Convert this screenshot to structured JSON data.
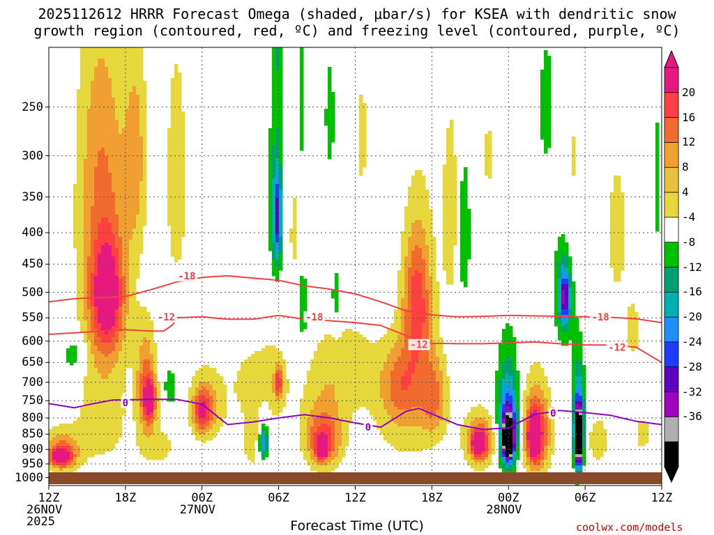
{
  "chart_data": {
    "type": "heatmap",
    "title_line1": "2025112612 HRRR Forecast Omega (shaded, μbar/s) for KSEA with dendritic snow",
    "title_line2": "growth region (contoured, red, ºC) and freezing level (contoured, purple, ºC)",
    "xlabel": "Forecast Time (UTC)",
    "ylabel": "",
    "credit": "coolwx.com/models",
    "x_ticks": [
      "12Z",
      "18Z",
      "00Z",
      "06Z",
      "12Z",
      "18Z",
      "00Z",
      "06Z",
      "12Z"
    ],
    "x_hours": [
      0,
      6,
      12,
      18,
      24,
      30,
      36,
      42,
      48
    ],
    "x_range_hours": [
      0,
      48
    ],
    "date_labels": [
      {
        "hour": 0,
        "lines": [
          "26NOV",
          "2025"
        ]
      },
      {
        "hour": 12,
        "lines": [
          "27NOV"
        ]
      },
      {
        "hour": 36,
        "lines": [
          "28NOV"
        ]
      }
    ],
    "y_ticks": [
      "250",
      "300",
      "350",
      "400",
      "450",
      "500",
      "550",
      "600",
      "650",
      "700",
      "750",
      "800",
      "850",
      "900",
      "950",
      "1000"
    ],
    "y_values_hpa": [
      250,
      300,
      350,
      400,
      450,
      500,
      550,
      600,
      650,
      700,
      750,
      800,
      850,
      900,
      950,
      1000
    ],
    "y_range_hpa": [
      200,
      1030
    ],
    "colorbar": {
      "labels": [
        "20",
        "16",
        "12",
        "8",
        "4",
        "-4",
        "-8",
        "-12",
        "-16",
        "-20",
        "-24",
        "-28",
        "-32",
        "-36"
      ],
      "colors": [
        "#e6197f",
        "#ff4040",
        "#f06b2d",
        "#f0a030",
        "#e8c040",
        "#e6d83c",
        "#ffffff",
        "#00c000",
        "#00a070",
        "#00b0b0",
        "#1e90ff",
        "#1e3cff",
        "#6000c0",
        "#a000c0",
        "#b0b0b0",
        "#000000"
      ]
    },
    "series": [
      {
        "name": "dendritic snow growth -18C",
        "color": "#f04040",
        "label": "-18",
        "label_points": [
          [
            10.8,
            470
          ],
          [
            20.8,
            548
          ],
          [
            43.2,
            548
          ]
        ],
        "points": [
          [
            0,
            518
          ],
          [
            2,
            512
          ],
          [
            4,
            510
          ],
          [
            6,
            508
          ],
          [
            8,
            495
          ],
          [
            10,
            481
          ],
          [
            12,
            473
          ],
          [
            14,
            470
          ],
          [
            16,
            474
          ],
          [
            18,
            478
          ],
          [
            20,
            488
          ],
          [
            22,
            494
          ],
          [
            24,
            503
          ],
          [
            26,
            518
          ],
          [
            28,
            536
          ],
          [
            30,
            544
          ],
          [
            32,
            548
          ],
          [
            34,
            547
          ],
          [
            36,
            545
          ],
          [
            38,
            546
          ],
          [
            40,
            547
          ],
          [
            42,
            548
          ],
          [
            44,
            549
          ],
          [
            46,
            552
          ],
          [
            48,
            560
          ]
        ]
      },
      {
        "name": "dendritic snow growth -12C",
        "color": "#f04040",
        "label": "-12",
        "label_points": [
          [
            9.2,
            548
          ],
          [
            29,
            608
          ],
          [
            44.5,
            614
          ]
        ],
        "points": [
          [
            0,
            585
          ],
          [
            2,
            582
          ],
          [
            4,
            578
          ],
          [
            6,
            575
          ],
          [
            8,
            578
          ],
          [
            9,
            578
          ],
          [
            9.7,
            565
          ],
          [
            10,
            550
          ],
          [
            12,
            548
          ],
          [
            14,
            553
          ],
          [
            16,
            553
          ],
          [
            18,
            545
          ],
          [
            20,
            553
          ],
          [
            22,
            556
          ],
          [
            24,
            560
          ],
          [
            26,
            566
          ],
          [
            28,
            588
          ],
          [
            30,
            605
          ],
          [
            32,
            606
          ],
          [
            34,
            606
          ],
          [
            36,
            604
          ],
          [
            38,
            602
          ],
          [
            40,
            606
          ],
          [
            42,
            609
          ],
          [
            44,
            609
          ],
          [
            46,
            614
          ],
          [
            48,
            650
          ]
        ]
      },
      {
        "name": "freezing level 0C",
        "color": "#9000c0",
        "label": "0",
        "label_points": [
          [
            6,
            755
          ],
          [
            25,
            828
          ],
          [
            39.5,
            786
          ]
        ],
        "points": [
          [
            0,
            758
          ],
          [
            2,
            770
          ],
          [
            3,
            762
          ],
          [
            5,
            748
          ],
          [
            8,
            746
          ],
          [
            10,
            746
          ],
          [
            12,
            760
          ],
          [
            14,
            820
          ],
          [
            16,
            812
          ],
          [
            18,
            800
          ],
          [
            20,
            790
          ],
          [
            22,
            800
          ],
          [
            24,
            815
          ],
          [
            26,
            828
          ],
          [
            28,
            780
          ],
          [
            29,
            772
          ],
          [
            30,
            788
          ],
          [
            32,
            820
          ],
          [
            34,
            835
          ],
          [
            36,
            830
          ],
          [
            37,
            810
          ],
          [
            38,
            790
          ],
          [
            40,
            778
          ],
          [
            42,
            784
          ],
          [
            44,
            792
          ],
          [
            46,
            810
          ],
          [
            48,
            820
          ]
        ]
      }
    ],
    "omega_blobs": [
      {
        "h": 2.0,
        "p": 630,
        "rh": 0.9,
        "rp": 45,
        "v": -8
      },
      {
        "h": 1.0,
        "p": 905,
        "rh": 1.5,
        "rp": 75,
        "v": 13
      },
      {
        "h": 1.0,
        "p": 925,
        "rh": 0.8,
        "rp": 30,
        "v": 19
      },
      {
        "h": 4.0,
        "p": 270,
        "rh": 1.9,
        "rp": 150,
        "v": 6
      },
      {
        "h": 4.3,
        "p": 480,
        "rh": 2.0,
        "rp": 230,
        "v": 12
      },
      {
        "h": 4.6,
        "p": 510,
        "rh": 1.2,
        "rp": 100,
        "v": 17
      },
      {
        "h": 4.2,
        "p": 820,
        "rh": 2.0,
        "rp": 130,
        "v": 6
      },
      {
        "h": 6.8,
        "p": 300,
        "rh": 0.9,
        "rp": 120,
        "v": 9
      },
      {
        "h": 7.6,
        "p": 700,
        "rh": 0.8,
        "rp": 140,
        "v": 13
      },
      {
        "h": 7.9,
        "p": 750,
        "rh": 0.5,
        "rp": 60,
        "v": 19
      },
      {
        "h": 9.5,
        "p": 710,
        "rh": 0.5,
        "rp": 60,
        "v": -8
      },
      {
        "h": 10.0,
        "p": 330,
        "rh": 1.4,
        "rp": 250,
        "v": 5
      },
      {
        "h": 8.5,
        "p": 890,
        "rh": 1.5,
        "rp": 70,
        "v": 6
      },
      {
        "h": 12.5,
        "p": 760,
        "rh": 1.5,
        "rp": 110,
        "v": 9
      },
      {
        "h": 12.0,
        "p": 780,
        "rh": 0.7,
        "rp": 60,
        "v": 15
      },
      {
        "h": 15.0,
        "p": 420,
        "rh": 0.8,
        "rp": 80,
        "v": 4
      },
      {
        "h": 15.5,
        "p": 700,
        "rh": 1.2,
        "rp": 90,
        "v": 5
      },
      {
        "h": 16.0,
        "p": 870,
        "rh": 0.9,
        "rp": 100,
        "v": 7
      },
      {
        "h": 17.8,
        "p": 180,
        "rh": 0.4,
        "rp": 60,
        "v": -7
      },
      {
        "h": 17.8,
        "p": 350,
        "rh": 0.6,
        "rp": 130,
        "v": -10
      },
      {
        "h": 17.9,
        "p": 380,
        "rh": 0.3,
        "rp": 60,
        "v": -19
      },
      {
        "h": 17.5,
        "p": 700,
        "rh": 1.5,
        "rp": 140,
        "v": 6
      },
      {
        "h": 18.0,
        "p": 700,
        "rh": 0.3,
        "rp": 40,
        "v": 15
      },
      {
        "h": 16.8,
        "p": 860,
        "rh": 0.5,
        "rp": 90,
        "v": -10
      },
      {
        "h": 16.8,
        "p": 880,
        "rh": 0.3,
        "rp": 40,
        "v": -14
      },
      {
        "h": 19.8,
        "p": 240,
        "rh": 0.3,
        "rp": 130,
        "v": -7
      },
      {
        "h": 19.4,
        "p": 400,
        "rh": 1.0,
        "rp": 120,
        "v": 5
      },
      {
        "h": 19.9,
        "p": 520,
        "rh": 0.4,
        "rp": 90,
        "v": -10
      },
      {
        "h": 21.5,
        "p": 800,
        "rh": 2.0,
        "rp": 180,
        "v": 7
      },
      {
        "h": 21.5,
        "p": 870,
        "rh": 1.2,
        "rp": 80,
        "v": 14
      },
      {
        "h": 21.4,
        "p": 900,
        "rh": 0.4,
        "rp": 30,
        "v": 20
      },
      {
        "h": 23.5,
        "p": 650,
        "rh": 2.5,
        "rp": 120,
        "v": 5
      },
      {
        "h": 22.5,
        "p": 510,
        "rh": 0.4,
        "rp": 60,
        "v": -8
      },
      {
        "h": 24.5,
        "p": 280,
        "rh": 0.7,
        "rp": 90,
        "v": 5
      },
      {
        "h": 22.0,
        "p": 260,
        "rh": 0.4,
        "rp": 60,
        "v": -7
      },
      {
        "h": 29.0,
        "p": 520,
        "rh": 1.5,
        "rp": 240,
        "v": 7
      },
      {
        "h": 28.8,
        "p": 520,
        "rh": 1.0,
        "rp": 120,
        "v": 12
      },
      {
        "h": 27.8,
        "p": 780,
        "rh": 2.8,
        "rp": 180,
        "v": 6
      },
      {
        "h": 27.5,
        "p": 700,
        "rh": 1.5,
        "rp": 100,
        "v": 9
      },
      {
        "h": 30.2,
        "p": 740,
        "rh": 1.0,
        "rp": 110,
        "v": 10
      },
      {
        "h": 31.5,
        "p": 370,
        "rh": 0.7,
        "rp": 140,
        "v": 7
      },
      {
        "h": 32.5,
        "p": 400,
        "rh": 0.5,
        "rp": 110,
        "v": -9
      },
      {
        "h": 34.5,
        "p": 300,
        "rh": 1.0,
        "rp": 60,
        "v": 5
      },
      {
        "h": 33.8,
        "p": 860,
        "rh": 1.6,
        "rp": 110,
        "v": 8
      },
      {
        "h": 33.8,
        "p": 880,
        "rh": 0.8,
        "rp": 60,
        "v": 15
      },
      {
        "h": 33.6,
        "p": 880,
        "rh": 0.4,
        "rp": 30,
        "v": 21
      },
      {
        "h": 35.2,
        "p": 330,
        "rh": 0.3,
        "rp": 60,
        "v": -7
      },
      {
        "h": 36.0,
        "p": 770,
        "rh": 1.0,
        "rp": 220,
        "v": -10
      },
      {
        "h": 36.0,
        "p": 820,
        "rh": 0.7,
        "rp": 120,
        "v": -19
      },
      {
        "h": 36.0,
        "p": 860,
        "rh": 0.5,
        "rp": 70,
        "v": -28
      },
      {
        "h": 36.0,
        "p": 880,
        "rh": 0.3,
        "rp": 40,
        "v": -38
      },
      {
        "h": 38.0,
        "p": 820,
        "rh": 1.5,
        "rp": 190,
        "v": 8
      },
      {
        "h": 38.2,
        "p": 850,
        "rh": 0.9,
        "rp": 110,
        "v": 15
      },
      {
        "h": 38.0,
        "p": 860,
        "rh": 0.4,
        "rp": 60,
        "v": 21
      },
      {
        "h": 39.0,
        "p": 250,
        "rh": 0.6,
        "rp": 60,
        "v": -8
      },
      {
        "h": 40.8,
        "p": 330,
        "rh": 1.2,
        "rp": 130,
        "v": 6
      },
      {
        "h": 40.3,
        "p": 470,
        "rh": 0.9,
        "rp": 150,
        "v": -9
      },
      {
        "h": 40.4,
        "p": 510,
        "rh": 0.4,
        "rp": 50,
        "v": -24
      },
      {
        "h": 41.5,
        "p": 770,
        "rh": 0.5,
        "rp": 200,
        "v": -9
      },
      {
        "h": 41.5,
        "p": 830,
        "rh": 0.35,
        "rp": 120,
        "v": -24
      },
      {
        "h": 41.5,
        "p": 870,
        "rh": 0.25,
        "rp": 80,
        "v": -38
      },
      {
        "h": 43.0,
        "p": 870,
        "rh": 1.0,
        "rp": 100,
        "v": 6
      },
      {
        "h": 44.5,
        "p": 400,
        "rh": 1.2,
        "rp": 170,
        "v": 5
      },
      {
        "h": 45.8,
        "p": 580,
        "rh": 0.7,
        "rp": 80,
        "v": 5
      },
      {
        "h": 46.5,
        "p": 850,
        "rh": 1.0,
        "rp": 90,
        "v": 5
      },
      {
        "h": 47.9,
        "p": 330,
        "rh": 0.4,
        "rp": 200,
        "v": -9
      },
      {
        "h": 47.9,
        "p": 200,
        "rh": 0.3,
        "rp": 30,
        "v": 6
      }
    ]
  }
}
